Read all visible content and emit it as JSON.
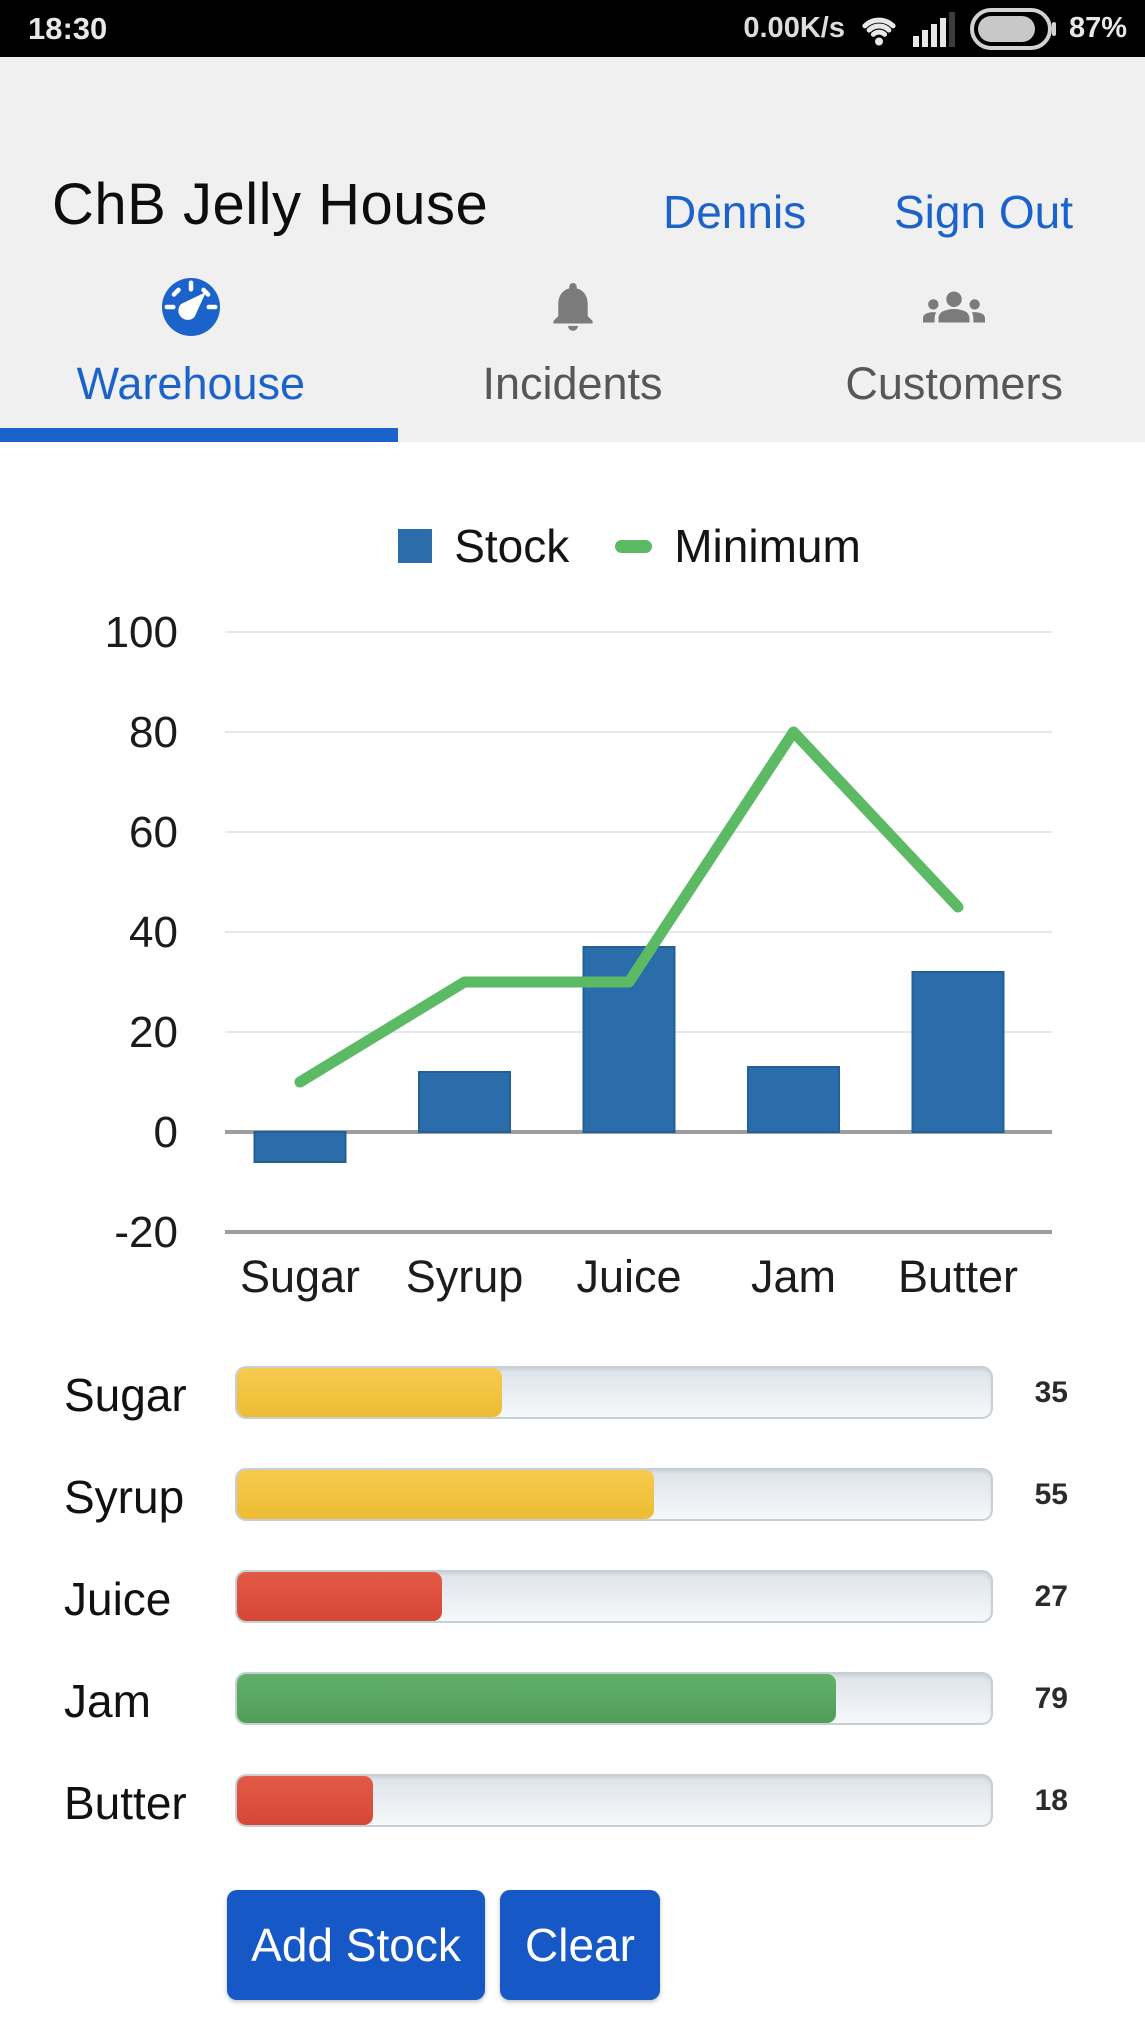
{
  "status_bar": {
    "time": "18:30",
    "net_speed": "0.00K/s",
    "battery_percent": "87%"
  },
  "header": {
    "title": "ChB Jelly House",
    "user_link": "Dennis",
    "sign_out_link": "Sign Out"
  },
  "tabs": [
    {
      "label": "Warehouse",
      "icon": "gauge-icon",
      "active": true
    },
    {
      "label": "Incidents",
      "icon": "bell-icon",
      "active": false
    },
    {
      "label": "Customers",
      "icon": "people-icon",
      "active": false
    }
  ],
  "chart_data": {
    "type": "bar",
    "categories": [
      "Sugar",
      "Syrup",
      "Juice",
      "Jam",
      "Butter"
    ],
    "series": [
      {
        "name": "Stock",
        "type": "bar",
        "color": "#2b6cab",
        "values": [
          -6,
          12,
          37,
          13,
          32
        ]
      },
      {
        "name": "Minimum",
        "type": "line",
        "color": "#5bba63",
        "values": [
          10,
          30,
          30,
          80,
          45
        ]
      }
    ],
    "ylim": [
      -20,
      100
    ],
    "yticks": [
      100,
      80,
      60,
      40,
      20,
      0,
      -20
    ],
    "grid": true,
    "legend_position": "top"
  },
  "stock_rows": [
    {
      "label": "Sugar",
      "value": 35,
      "color": "yellow"
    },
    {
      "label": "Syrup",
      "value": 55,
      "color": "yellow"
    },
    {
      "label": "Juice",
      "value": 27,
      "color": "red"
    },
    {
      "label": "Jam",
      "value": 79,
      "color": "green"
    },
    {
      "label": "Butter",
      "value": 18,
      "color": "red"
    }
  ],
  "actions": {
    "add_stock": "Add Stock",
    "clear": "Clear"
  },
  "colors": {
    "accent_blue": "#1b63cb",
    "button_blue": "#1658c5",
    "bar_blue": "#2b6cab",
    "line_green": "#5bba63",
    "status_yellow": "#f2c33d",
    "status_red": "#dc4f3d",
    "status_green": "#57a660",
    "grid_light": "#e3e8ef",
    "grid_dark": "#9e9ea2"
  }
}
